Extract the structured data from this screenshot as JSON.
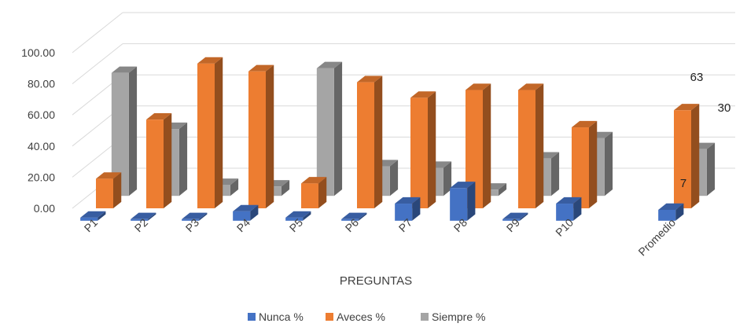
{
  "chart_data": {
    "type": "bar",
    "xlabel": "PREGUNTAS",
    "ylabel": "",
    "ylim": [
      0,
      100
    ],
    "y_ticks": [
      "0.00",
      "20.00",
      "40.00",
      "60.00",
      "80.00",
      "100.00"
    ],
    "categories": [
      "P1",
      "P2",
      "P3",
      "P4",
      "P5",
      "P6",
      "P7",
      "P8",
      "P9",
      "P10",
      "Promedio"
    ],
    "series": [
      {
        "name": "Nunca %",
        "color": "#4472C4",
        "values": [
          2,
          0,
          0,
          6,
          2,
          0,
          11,
          21,
          0,
          11,
          7
        ]
      },
      {
        "name": "Aveces %",
        "color": "#ED7D31",
        "values": [
          19,
          57,
          93,
          88,
          16,
          81,
          71,
          76,
          76,
          52,
          63
        ]
      },
      {
        "name": "Siempre %",
        "color": "#A5A5A5",
        "values": [
          79,
          43,
          7,
          6,
          82,
          19,
          18,
          4,
          24,
          37,
          30
        ]
      }
    ],
    "data_labels": [
      {
        "series": 0,
        "category": 10,
        "text": "7"
      },
      {
        "series": 1,
        "category": 10,
        "text": "63"
      },
      {
        "series": 2,
        "category": 10,
        "text": "30"
      }
    ],
    "legend_position": "bottom",
    "grid": true,
    "style": "3d-column"
  }
}
